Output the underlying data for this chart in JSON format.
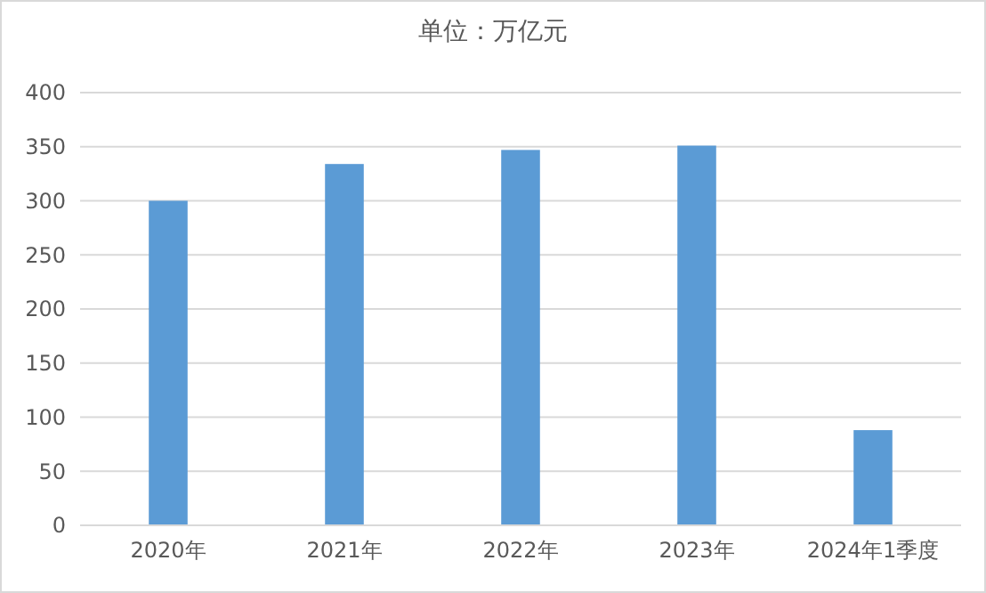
{
  "chart_data": {
    "type": "bar",
    "title": "单位：万亿元",
    "categories": [
      "2020年",
      "2021年",
      "2022年",
      "2023年",
      "2024年1季度"
    ],
    "values": [
      300,
      334,
      347,
      351,
      88
    ],
    "color": "#5b9bd5",
    "ylim": [
      0,
      400
    ],
    "yticks": [
      0,
      50,
      100,
      150,
      200,
      250,
      300,
      350,
      400
    ],
    "grid": "y"
  }
}
